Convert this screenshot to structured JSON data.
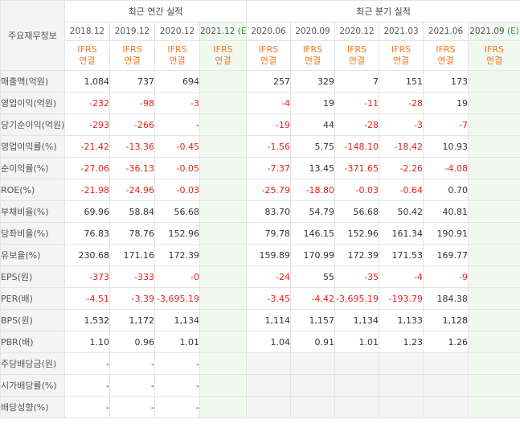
{
  "corner_label": "주요재무정보",
  "group_annual": "최근 연간 실적",
  "group_quarter": "최근 분기 실적",
  "periods": [
    {
      "label": "2018.12",
      "est": false
    },
    {
      "label": "2019.12",
      "est": false
    },
    {
      "label": "2020.12",
      "est": false
    },
    {
      "label": "2021.12",
      "est": true,
      "est_mark": "(E)"
    },
    {
      "label": "2020.06",
      "est": false
    },
    {
      "label": "2020.09",
      "est": false
    },
    {
      "label": "2020.12",
      "est": false
    },
    {
      "label": "2021.03",
      "est": false
    },
    {
      "label": "2021.06",
      "est": false
    },
    {
      "label": "2021.09",
      "est": true,
      "est_mark": "(E)"
    }
  ],
  "acct_line1": "IFRS",
  "acct_line2": "연결",
  "rows": [
    {
      "label": "매출액(억원)",
      "values": [
        "1,084",
        "737",
        "694",
        "",
        "257",
        "329",
        "7",
        "151",
        "173",
        ""
      ],
      "sep": false
    },
    {
      "label": "영업이익(억원)",
      "values": [
        "-232",
        "-98",
        "-3",
        "",
        "-4",
        "19",
        "-11",
        "-28",
        "19",
        ""
      ],
      "sep": false
    },
    {
      "label": "당기순이익(억원)",
      "values": [
        "-293",
        "-266",
        "-",
        "",
        "-19",
        "44",
        "-28",
        "-3",
        "-7",
        ""
      ],
      "sep": false
    },
    {
      "label": "영업이익률(%)",
      "values": [
        "-21.42",
        "-13.36",
        "-0.45",
        "",
        "-1.56",
        "5.75",
        "-148.10",
        "-18.42",
        "10.93",
        ""
      ],
      "sep": true
    },
    {
      "label": "순이익률(%)",
      "values": [
        "-27.06",
        "-36.13",
        "-0.05",
        "",
        "-7.37",
        "13.45",
        "-371.65",
        "-2.26",
        "-4.08",
        ""
      ],
      "sep": false
    },
    {
      "label": "ROE(%)",
      "values": [
        "-21.98",
        "-24.96",
        "-0.03",
        "",
        "-25.79",
        "-18.80",
        "-0.03",
        "-0.64",
        "0.70",
        ""
      ],
      "sep": false
    },
    {
      "label": "부채비율(%)",
      "values": [
        "69.96",
        "58.84",
        "56.68",
        "",
        "83.70",
        "54.79",
        "56.68",
        "50.42",
        "40.81",
        ""
      ],
      "sep": true
    },
    {
      "label": "당좌비율(%)",
      "values": [
        "76.83",
        "78.76",
        "152.96",
        "",
        "79.78",
        "146.15",
        "152.96",
        "161.34",
        "190.91",
        ""
      ],
      "sep": false
    },
    {
      "label": "유보율(%)",
      "values": [
        "230.68",
        "171.16",
        "172.39",
        "",
        "159.89",
        "170.99",
        "172.39",
        "171.53",
        "169.77",
        ""
      ],
      "sep": false
    },
    {
      "label": "EPS(원)",
      "values": [
        "-373",
        "-333",
        "-0",
        "",
        "-24",
        "55",
        "-35",
        "-4",
        "-9",
        ""
      ],
      "sep": true
    },
    {
      "label": "PER(배)",
      "values": [
        "-4.51",
        "-3.39",
        "-3,695.19",
        "",
        "-3.45",
        "-4.42",
        "-3,695.19",
        "-193.79",
        "184.38",
        ""
      ],
      "sep": false
    },
    {
      "label": "BPS(원)",
      "values": [
        "1,532",
        "1,172",
        "1,134",
        "",
        "1,114",
        "1,157",
        "1,134",
        "1,133",
        "1,128",
        ""
      ],
      "sep": false
    },
    {
      "label": "PBR(배)",
      "values": [
        "1.10",
        "0.96",
        "1.01",
        "",
        "1.04",
        "0.91",
        "1.01",
        "1.23",
        "1.26",
        ""
      ],
      "sep": false
    },
    {
      "label": "주당배당금(원)",
      "values": [
        "-",
        "-",
        "-",
        "",
        "",
        "",
        "",
        "",
        "",
        ""
      ],
      "sep": true,
      "quarter_gray": true
    },
    {
      "label": "시가배당률(%)",
      "values": [
        "-",
        "-",
        "-",
        "",
        "",
        "",
        "",
        "",
        "",
        ""
      ],
      "sep": false,
      "quarter_gray": true
    },
    {
      "label": "배당성향(%)",
      "values": [
        "-",
        "-",
        "-",
        "",
        "",
        "",
        "",
        "",
        "",
        ""
      ],
      "sep": false,
      "quarter_gray": true
    }
  ],
  "colors": {
    "negative": "#e2231a",
    "accounting": "#f47920",
    "estimate_bg": "#f1f8f0",
    "estimate_mark": "#2e9a3d",
    "label_bg": "#f4f4f4"
  }
}
